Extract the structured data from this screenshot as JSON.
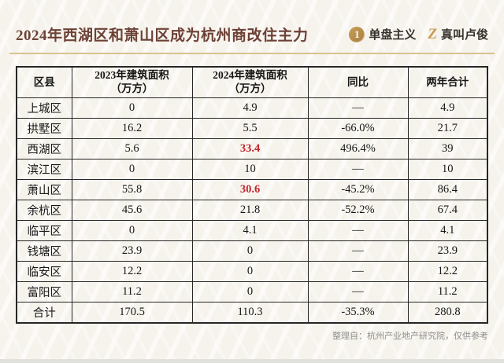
{
  "header": {
    "title": "2024年西湖区和萧山区成为杭州商改住主力",
    "logo_danpan": {
      "icon": "1",
      "label": "单盘主义"
    },
    "logo_zhenjiao": {
      "icon": "Z",
      "label": "真叫卢俊"
    }
  },
  "chart_data": {
    "type": "table",
    "title": "2024年西湖区和萧山区成为杭州商改住主力",
    "columns": [
      "区县",
      "2023年建筑面积\n（万方）",
      "2024年建筑面积\n（万方）",
      "同比",
      "两年合计"
    ],
    "rows": [
      {
        "cells": [
          "上城区",
          "0",
          "4.9",
          "—",
          "4.9"
        ]
      },
      {
        "cells": [
          "拱墅区",
          "16.2",
          "5.5",
          "-66.0%",
          "21.7"
        ]
      },
      {
        "cells": [
          "西湖区",
          "5.6",
          "33.4",
          "496.4%",
          "39"
        ],
        "red": [
          2
        ]
      },
      {
        "cells": [
          "滨江区",
          "0",
          "10",
          "—",
          "10"
        ]
      },
      {
        "cells": [
          "萧山区",
          "55.8",
          "30.6",
          "-45.2%",
          "86.4"
        ],
        "red": [
          2
        ]
      },
      {
        "cells": [
          "余杭区",
          "45.6",
          "21.8",
          "-52.2%",
          "67.4"
        ]
      },
      {
        "cells": [
          "临平区",
          "0",
          "4.1",
          "—",
          "4.1"
        ]
      },
      {
        "cells": [
          "钱塘区",
          "23.9",
          "0",
          "—",
          "23.9"
        ]
      },
      {
        "cells": [
          "临安区",
          "12.2",
          "0",
          "—",
          "12.2"
        ]
      },
      {
        "cells": [
          "富阳区",
          "11.2",
          "0",
          "—",
          "11.2"
        ]
      },
      {
        "cells": [
          "合计",
          "170.5",
          "110.3",
          "-35.3%",
          "280.8"
        ],
        "total": true
      }
    ],
    "highlight_note": "33.4 and 30.6 shown in red",
    "legend_position": "none",
    "grid": true
  },
  "footer": {
    "note": "整理自：杭州产业地产研究院，仅供参考"
  },
  "colors": {
    "background": "#f6f3ec",
    "title_brown": "#6d4136",
    "accent_gold": "#d8c28e",
    "logo_gold": "#c69c50",
    "highlight_red": "#c1272d",
    "table_border": "#262626",
    "footnote_gray": "#8e8e8e"
  }
}
